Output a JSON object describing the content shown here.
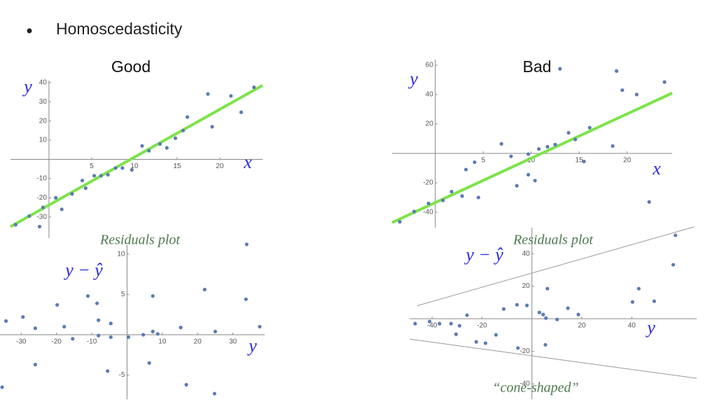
{
  "bullet": "Homoscedasticity",
  "chart_data": [
    {
      "type": "scatter",
      "title": "Good",
      "xlabel": "x",
      "ylabel": "y",
      "color": "#5b7bb5",
      "xlim": [
        -4.5,
        25
      ],
      "ylim": [
        -41,
        41
      ],
      "xticks": [
        5,
        10,
        15,
        20
      ],
      "yticks": [
        -30,
        -20,
        -10,
        10,
        20,
        30,
        40
      ],
      "x": [
        -3.9,
        -2.3,
        -1.1,
        -0.7,
        0.8,
        1.5,
        2.7,
        3.9,
        4.3,
        5.3,
        6.1,
        6.9,
        7.8,
        8.6,
        9.7,
        10.9,
        11.7,
        13,
        13.8,
        14.8,
        15.7,
        16.2,
        18.6,
        19.1,
        21.3,
        22.5,
        24
      ],
      "values": [
        -34,
        -29.5,
        -35,
        -25,
        -20,
        -26,
        -18,
        -11,
        -15,
        -8.5,
        -8.5,
        -8,
        -4.5,
        -4.5,
        -5.5,
        7,
        4.5,
        8,
        6,
        11,
        15,
        22,
        34,
        17,
        33,
        24.5,
        37.5
      ],
      "lines": [
        {
          "color": "#7de34a",
          "x": [
            -4.5,
            25
          ],
          "values": [
            -35,
            38.5
          ]
        }
      ]
    },
    {
      "type": "scatter",
      "title": "Residuals plot",
      "xlabel": "y",
      "ylabel": "y − ŷ",
      "color": "#5b7bb5",
      "xlim": [
        -36,
        39
      ],
      "ylim": [
        -8,
        11.1
      ],
      "xticks": [
        -30,
        -20,
        -10,
        10,
        20,
        30
      ],
      "yticks": [
        -5,
        5,
        10
      ],
      "x": [
        -34.3,
        -29.5,
        -26,
        -26,
        -19.8,
        -17.8,
        -15.4,
        -11.1,
        -8.5,
        -8.1,
        -8.1,
        -4.6,
        -4.6,
        -5.5,
        0.4,
        4.6,
        6.3,
        7.3,
        7.3,
        8.7,
        15.2,
        16.8,
        22,
        25,
        24.8,
        33.7,
        33.9,
        37.6,
        -35.4
      ],
      "values": [
        1.7,
        2.2,
        0.8,
        -3.7,
        3.7,
        1,
        -0.5,
        4.8,
        3.9,
        1.8,
        -0.1,
        1.4,
        -0.3,
        -4.5,
        -0.3,
        0,
        -3.5,
        4.8,
        0.4,
        0.1,
        0.9,
        -6.2,
        5.6,
        0.4,
        -7.3,
        4.4,
        11.2,
        1,
        -6.5
      ],
      "lines": []
    },
    {
      "type": "scatter",
      "title": "Bad",
      "xlabel": "x",
      "ylabel": "y",
      "color": "#5b7bb5",
      "xlim": [
        -4.5,
        24.7
      ],
      "ylim": [
        -50.5,
        63.8
      ],
      "xticks": [
        5,
        10,
        15,
        20
      ],
      "yticks": [
        -40,
        -20,
        20,
        40,
        60
      ],
      "x": [
        -3.7,
        -2.2,
        -0.7,
        0.8,
        1.7,
        2.8,
        4.5,
        3.2,
        4.1,
        6.9,
        7.9,
        8.5,
        9.7,
        9.7,
        10.4,
        10.8,
        11.7,
        12.5,
        13,
        13.9,
        14.6,
        15.5,
        16.1,
        18.5,
        18.9,
        19.5,
        21,
        22.3,
        23.9
      ],
      "values": [
        -46.5,
        -39.5,
        -34,
        -32,
        -26,
        -29,
        -30,
        -11,
        -6,
        6.5,
        -2,
        -22,
        -0.5,
        -14.5,
        -18.5,
        3,
        4.5,
        6,
        57.5,
        14,
        9.5,
        -5.5,
        17.5,
        5,
        56,
        43,
        40,
        -33,
        48.5
      ],
      "lines": [
        {
          "color": "#7de34a",
          "x": [
            -4.5,
            24.7
          ],
          "values": [
            -47,
            41
          ]
        }
      ]
    },
    {
      "type": "scatter",
      "title": "Residuals plot",
      "xlabel": "y",
      "ylabel": "y − ŷ",
      "annotation": "“cone-shaped”",
      "color": "#5b7bb5",
      "xlim": [
        -49,
        66
      ],
      "ylim": [
        -49.5,
        56
      ],
      "xticks": [
        -40,
        -20,
        20,
        40
      ],
      "yticks": [
        -40,
        -20,
        20,
        40
      ],
      "x": [
        -46.8,
        -41,
        -37,
        -32.4,
        -30.4,
        -29,
        -26,
        -22.3,
        -18.6,
        -14.4,
        -11.3,
        -6,
        -5.6,
        -2,
        3,
        4.5,
        5.6,
        6.2,
        5.4,
        10.1,
        14.4,
        18.6,
        40.3,
        42.8,
        49,
        56.6,
        57.5
      ],
      "values": [
        -3,
        -1.7,
        -3,
        -3,
        -9.5,
        -4.3,
        2.2,
        -14.2,
        -15,
        -9.9,
        6,
        8.6,
        -18,
        8.2,
        3.9,
        2.6,
        0.4,
        18.5,
        -16,
        -0.4,
        6.5,
        2.6,
        10.3,
        18.5,
        10.8,
        33.2,
        51.3
      ],
      "lines": [
        {
          "color": "#999999",
          "x": [
            -46,
            65
          ],
          "values": [
            8,
            56.5
          ]
        },
        {
          "color": "#999999",
          "x": [
            -49,
            66
          ],
          "values": [
            -12.5,
            -36.6
          ]
        }
      ]
    }
  ]
}
